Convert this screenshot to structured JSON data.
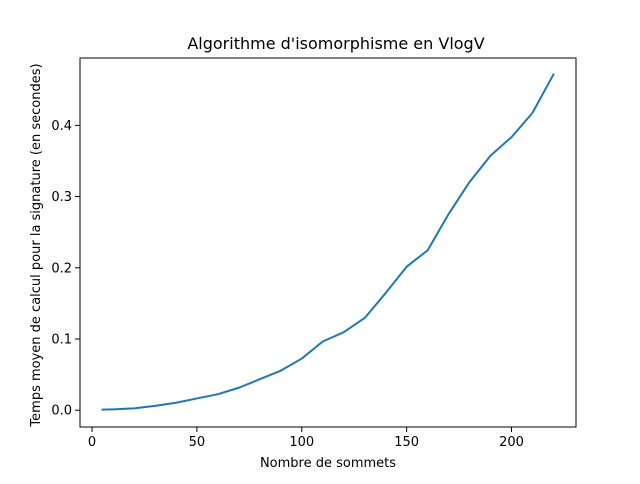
{
  "chart_data": {
    "type": "line",
    "title": "Algorithme d'isomorphisme en VlogV",
    "xlabel": "Nombre de sommets",
    "ylabel": "Temps moyen de calcul pour la signature (en secondes)",
    "xlim": [
      -5.75,
      230.75
    ],
    "ylim": [
      -0.0236,
      0.4946
    ],
    "xticks": [
      0,
      50,
      100,
      150,
      200
    ],
    "xtick_labels": [
      "0",
      "50",
      "100",
      "150",
      "200"
    ],
    "yticks": [
      0.0,
      0.1,
      0.2,
      0.3,
      0.4
    ],
    "ytick_labels": [
      "0.0",
      "0.1",
      "0.2",
      "0.3",
      "0.4"
    ],
    "grid": false,
    "series": [
      {
        "color": "#1f77b4",
        "x": [
          5,
          10,
          20,
          30,
          40,
          50,
          60,
          70,
          80,
          90,
          100,
          110,
          120,
          130,
          140,
          150,
          160,
          170,
          180,
          190,
          200,
          210,
          220
        ],
        "y": [
          0.0008,
          0.0012,
          0.0026,
          0.0061,
          0.0105,
          0.0165,
          0.0225,
          0.0315,
          0.0435,
          0.0555,
          0.0725,
          0.0965,
          0.1095,
          0.1295,
          0.1645,
          0.2015,
          0.2245,
          0.2755,
          0.3205,
          0.3575,
          0.3835,
          0.4175,
          0.4715
        ]
      }
    ]
  }
}
